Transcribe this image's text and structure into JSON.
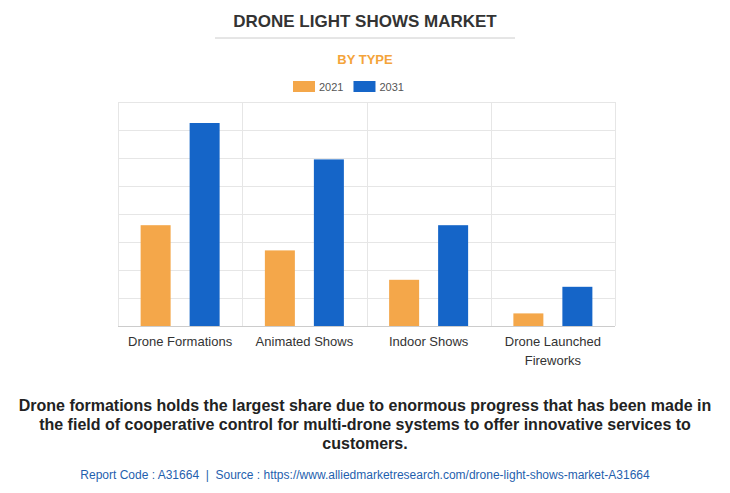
{
  "chart_data": {
    "type": "bar",
    "title": "DRONE LIGHT SHOWS MARKET",
    "subtitle": "BY TYPE",
    "categories": [
      "Drone Formations",
      "Animated Shows",
      "Indoor Shows",
      "Drone Launched Fireworks"
    ],
    "series": [
      {
        "name": "2021",
        "color": "#f4a74a",
        "values": [
          3.6,
          2.7,
          1.65,
          0.45
        ]
      },
      {
        "name": "2031",
        "color": "#1565c8",
        "values": [
          7.25,
          5.95,
          3.6,
          1.4
        ]
      }
    ],
    "ylim": [
      0,
      8
    ],
    "yticks": [
      0,
      1,
      2,
      3,
      4,
      5,
      6,
      7,
      8
    ],
    "grid": true,
    "tick_labels": "x",
    "legend": "top",
    "caption": "Drone formations holds the largest share due to enormous progress that has been made in the field of cooperative control for multi-drone systems to offer innovative services to customers.",
    "source": "Report Code : A31664  |  Source : https://www.alliedmarketresearch.com/drone-light-shows-market-A31664"
  }
}
